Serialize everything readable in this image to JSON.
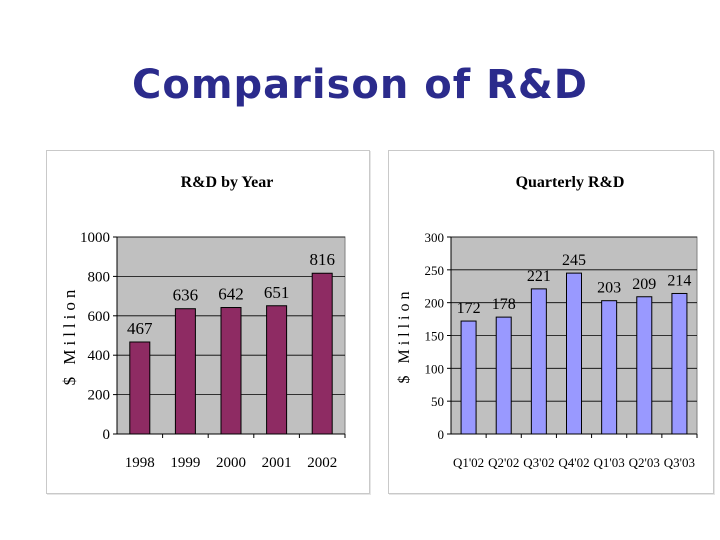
{
  "slide": {
    "title": "Comparison of R&D"
  },
  "chart_data": [
    {
      "type": "bar",
      "title": "R&D by Year",
      "xlabel": "",
      "ylabel": "$ Million",
      "categories": [
        "1998",
        "1999",
        "2000",
        "2001",
        "2002"
      ],
      "values": [
        467,
        636,
        642,
        651,
        816
      ],
      "ylim": [
        0,
        1000
      ],
      "yticks": [
        0,
        200,
        400,
        600,
        800,
        1000
      ],
      "bar_color": "#8e2b63",
      "plot_bg": "#c0c0c0",
      "grid": true,
      "legend": "none"
    },
    {
      "type": "bar",
      "title": "Quarterly R&D",
      "xlabel": "",
      "ylabel": "$ Million",
      "categories": [
        "Q1'02",
        "Q2'02",
        "Q3'02",
        "Q4'02",
        "Q1'03",
        "Q2'03",
        "Q3'03"
      ],
      "values": [
        172,
        178,
        221,
        245,
        203,
        209,
        214
      ],
      "ylim": [
        0,
        300
      ],
      "yticks": [
        0,
        50,
        100,
        150,
        200,
        250,
        300
      ],
      "bar_color": "#9999ff",
      "plot_bg": "#c0c0c0",
      "grid": true,
      "legend": "none"
    }
  ]
}
